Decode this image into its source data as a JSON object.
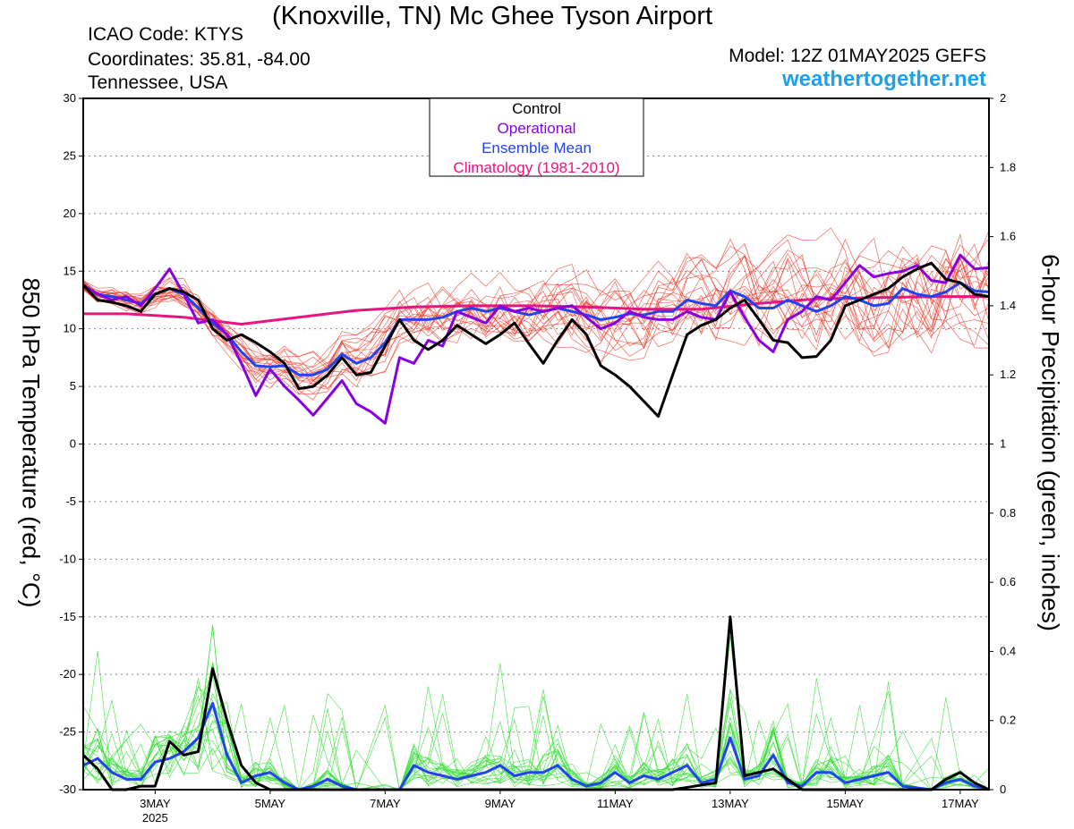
{
  "header": {
    "title": "(Knoxville, TN) Mc Ghee Tyson Airport",
    "icao": "ICAO Code: KTYS",
    "coordinates": "Coordinates: 35.81, -84.00",
    "region": "Tennessee, USA",
    "model": "Model: 12Z 01MAY2025 GEFS",
    "site": "weathertogether.net"
  },
  "chart_data": {
    "type": "line",
    "ylabel_left": "850 hPa Temperature (red, °C)",
    "ylabel_right": "6-hour Precipitation (green, inches)",
    "ylim_left": [
      -30,
      30
    ],
    "ylim_right": [
      0,
      2
    ],
    "yticks_left": [
      "30",
      "25",
      "20",
      "15",
      "10",
      "5",
      "0",
      "-5",
      "-10",
      "-15",
      "-20",
      "-25",
      "-30"
    ],
    "yticks_right": [
      "2",
      "1.8",
      "1.6",
      "1.4",
      "1.2",
      "1",
      "0.8",
      "0.6",
      "0.4",
      "0.2",
      "0"
    ],
    "xlim_days": [
      1.75,
      17.5
    ],
    "xticks": [
      {
        "day": 3,
        "label": "3MAY",
        "sublabel": "2025"
      },
      {
        "day": 5,
        "label": "5MAY"
      },
      {
        "day": 7,
        "label": "7MAY"
      },
      {
        "day": 9,
        "label": "9MAY"
      },
      {
        "day": 11,
        "label": "11MAY"
      },
      {
        "day": 13,
        "label": "13MAY"
      },
      {
        "day": 15,
        "label": "15MAY"
      },
      {
        "day": 17,
        "label": "17MAY"
      }
    ],
    "grid": "dotted horizontal",
    "legend_position": "top-center",
    "legend": [
      {
        "label": "Control",
        "color": "#000000"
      },
      {
        "label": "Operational",
        "color": "#8800dd"
      },
      {
        "label": "Ensemble Mean",
        "color": "#2244ee"
      },
      {
        "label": "Climatology (1981-2010)",
        "color": "#e8147f"
      }
    ],
    "colors": {
      "members_temp": "#ee3322",
      "members_precip": "#33dd33"
    },
    "temperature": {
      "control": [
        [
          1.75,
          13.8
        ],
        [
          2,
          12.5
        ],
        [
          2.25,
          12.3
        ],
        [
          2.5,
          12.0
        ],
        [
          2.75,
          11.5
        ],
        [
          3,
          13.0
        ],
        [
          3.25,
          13.5
        ],
        [
          3.5,
          13.2
        ],
        [
          3.75,
          12.5
        ],
        [
          4,
          10.0
        ],
        [
          4.25,
          9.0
        ],
        [
          4.5,
          9.5
        ],
        [
          4.75,
          8.8
        ],
        [
          5,
          8.0
        ],
        [
          5.25,
          7.0
        ],
        [
          5.5,
          4.8
        ],
        [
          5.75,
          5.0
        ],
        [
          6,
          6.0
        ],
        [
          6.25,
          7.5
        ],
        [
          6.5,
          6.0
        ],
        [
          6.75,
          6.2
        ],
        [
          7,
          8.5
        ],
        [
          7.25,
          10.8
        ],
        [
          7.5,
          9.0
        ],
        [
          7.75,
          8.2
        ],
        [
          8,
          9.0
        ],
        [
          8.25,
          10.3
        ],
        [
          8.5,
          9.5
        ],
        [
          8.75,
          8.7
        ],
        [
          9,
          9.5
        ],
        [
          9.25,
          10.5
        ],
        [
          9.5,
          8.7
        ],
        [
          9.75,
          7.0
        ],
        [
          10,
          9.0
        ],
        [
          10.25,
          10.8
        ],
        [
          10.5,
          9.5
        ],
        [
          10.75,
          6.8
        ],
        [
          11,
          6.0
        ],
        [
          11.25,
          5.0
        ],
        [
          11.5,
          3.7
        ],
        [
          11.75,
          2.4
        ],
        [
          12,
          6.0
        ],
        [
          12.25,
          9.5
        ],
        [
          12.5,
          10.3
        ],
        [
          12.75,
          10.8
        ],
        [
          13,
          11.8
        ],
        [
          13.25,
          12.5
        ],
        [
          13.5,
          10.8
        ],
        [
          13.75,
          9.0
        ],
        [
          14,
          8.8
        ],
        [
          14.25,
          7.5
        ],
        [
          14.5,
          7.6
        ],
        [
          14.75,
          9.0
        ],
        [
          15,
          12.0
        ],
        [
          15.25,
          12.5
        ],
        [
          15.5,
          13.0
        ],
        [
          15.75,
          13.5
        ],
        [
          16,
          14.5
        ],
        [
          16.25,
          15.2
        ],
        [
          16.5,
          15.7
        ],
        [
          16.75,
          14.3
        ],
        [
          17,
          14.0
        ],
        [
          17.25,
          13.0
        ],
        [
          17.5,
          12.8
        ]
      ],
      "operational": [
        [
          1.75,
          13.8
        ],
        [
          2,
          13.0
        ],
        [
          2.25,
          12.5
        ],
        [
          2.5,
          12.8
        ],
        [
          2.75,
          12.0
        ],
        [
          3,
          13.5
        ],
        [
          3.25,
          15.2
        ],
        [
          3.5,
          13.0
        ],
        [
          3.75,
          10.5
        ],
        [
          4,
          10.8
        ],
        [
          4.25,
          9.5
        ],
        [
          4.5,
          7.0
        ],
        [
          4.75,
          4.2
        ],
        [
          5,
          6.5
        ],
        [
          5.25,
          5.0
        ],
        [
          5.5,
          3.8
        ],
        [
          5.75,
          2.5
        ],
        [
          6,
          4.0
        ],
        [
          6.25,
          5.5
        ],
        [
          6.5,
          3.5
        ],
        [
          6.75,
          2.8
        ],
        [
          7,
          1.8
        ],
        [
          7.25,
          7.5
        ],
        [
          7.5,
          7.0
        ],
        [
          7.75,
          9.0
        ],
        [
          8,
          8.5
        ],
        [
          8.25,
          11.5
        ],
        [
          8.5,
          11.0
        ],
        [
          8.75,
          10.5
        ],
        [
          9,
          12.0
        ],
        [
          9.25,
          11.5
        ],
        [
          9.5,
          11.8
        ],
        [
          9.75,
          11.5
        ],
        [
          10,
          11.8
        ],
        [
          10.25,
          12.0
        ],
        [
          10.5,
          11.0
        ],
        [
          10.75,
          10.0
        ],
        [
          11,
          10.5
        ],
        [
          11.25,
          11.5
        ],
        [
          11.5,
          11.0
        ],
        [
          11.75,
          10.8
        ],
        [
          12,
          10.8
        ],
        [
          12.25,
          11.5
        ],
        [
          12.5,
          11.0
        ],
        [
          12.75,
          10.8
        ],
        [
          13,
          13.2
        ],
        [
          13.25,
          11.0
        ],
        [
          13.5,
          9.0
        ],
        [
          13.75,
          8.0
        ],
        [
          14,
          10.8
        ],
        [
          14.25,
          11.5
        ],
        [
          14.5,
          12.8
        ],
        [
          14.75,
          12.5
        ],
        [
          15,
          14.0
        ],
        [
          15.25,
          15.5
        ],
        [
          15.5,
          14.5
        ],
        [
          15.75,
          14.8
        ],
        [
          16,
          15.0
        ],
        [
          16.25,
          15.5
        ],
        [
          16.5,
          14.2
        ],
        [
          16.75,
          14.0
        ],
        [
          17,
          16.4
        ],
        [
          17.25,
          15.2
        ],
        [
          17.5,
          15.3
        ]
      ],
      "ensemble_mean": [
        [
          1.75,
          13.8
        ],
        [
          2,
          13.0
        ],
        [
          2.25,
          12.8
        ],
        [
          2.5,
          12.5
        ],
        [
          2.75,
          12.2
        ],
        [
          3,
          13.0
        ],
        [
          3.25,
          13.5
        ],
        [
          3.5,
          13.0
        ],
        [
          3.75,
          11.8
        ],
        [
          4,
          10.5
        ],
        [
          4.25,
          9.5
        ],
        [
          4.5,
          8.0
        ],
        [
          4.75,
          6.8
        ],
        [
          5,
          6.7
        ],
        [
          5.25,
          6.8
        ],
        [
          5.5,
          6.0
        ],
        [
          5.75,
          6.0
        ],
        [
          6,
          6.5
        ],
        [
          6.25,
          7.8
        ],
        [
          6.5,
          7.0
        ],
        [
          6.75,
          7.5
        ],
        [
          7,
          8.8
        ],
        [
          7.25,
          10.8
        ],
        [
          7.5,
          10.8
        ],
        [
          7.75,
          10.8
        ],
        [
          8,
          11.0
        ],
        [
          8.25,
          11.5
        ],
        [
          8.5,
          11.8
        ],
        [
          8.75,
          11.5
        ],
        [
          9,
          11.8
        ],
        [
          9.25,
          11.5
        ],
        [
          9.5,
          11.2
        ],
        [
          9.75,
          11.5
        ],
        [
          10,
          11.8
        ],
        [
          10.25,
          11.5
        ],
        [
          10.5,
          11.2
        ],
        [
          10.75,
          10.8
        ],
        [
          11,
          11.0
        ],
        [
          11.25,
          11.3
        ],
        [
          11.5,
          11.2
        ],
        [
          11.75,
          11.5
        ],
        [
          12,
          11.5
        ],
        [
          12.25,
          12.5
        ],
        [
          12.5,
          12.2
        ],
        [
          12.75,
          12.0
        ],
        [
          13,
          13.3
        ],
        [
          13.25,
          12.8
        ],
        [
          13.5,
          11.8
        ],
        [
          13.75,
          11.8
        ],
        [
          14,
          12.5
        ],
        [
          14.25,
          12.0
        ],
        [
          14.5,
          11.5
        ],
        [
          14.75,
          12.0
        ],
        [
          15,
          12.8
        ],
        [
          15.25,
          12.5
        ],
        [
          15.5,
          12.0
        ],
        [
          15.75,
          12.2
        ],
        [
          16,
          13.5
        ],
        [
          16.25,
          13.0
        ],
        [
          16.5,
          12.8
        ],
        [
          16.75,
          13.2
        ],
        [
          17,
          14.0
        ],
        [
          17.25,
          13.3
        ],
        [
          17.5,
          13.2
        ]
      ],
      "climatology": [
        [
          1.75,
          11.3
        ],
        [
          2.5,
          11.3
        ],
        [
          3.5,
          11.0
        ],
        [
          4.5,
          10.4
        ],
        [
          5.5,
          11.0
        ],
        [
          6.5,
          11.6
        ],
        [
          7.5,
          11.9
        ],
        [
          8.5,
          12.0
        ],
        [
          9.5,
          12.0
        ],
        [
          10.5,
          11.9
        ],
        [
          11.5,
          11.7
        ],
        [
          12.5,
          11.7
        ],
        [
          13.5,
          12.2
        ],
        [
          14.5,
          12.6
        ],
        [
          15.5,
          12.7
        ],
        [
          16.5,
          12.8
        ],
        [
          17.5,
          12.8
        ]
      ]
    },
    "precipitation": {
      "control": [
        [
          1.75,
          0.1
        ],
        [
          2,
          0.06
        ],
        [
          2.25,
          0.0
        ],
        [
          2.5,
          0.0
        ],
        [
          2.75,
          0.01
        ],
        [
          3,
          0.01
        ],
        [
          3.25,
          0.14
        ],
        [
          3.5,
          0.1
        ],
        [
          3.75,
          0.11
        ],
        [
          4,
          0.35
        ],
        [
          4.25,
          0.2
        ],
        [
          4.5,
          0.07
        ],
        [
          4.75,
          0.02
        ],
        [
          5,
          0.0
        ],
        [
          5.5,
          0.0
        ],
        [
          6,
          0.0
        ],
        [
          7,
          0.0
        ],
        [
          7.5,
          0.0
        ],
        [
          8,
          0.0
        ],
        [
          9,
          0.0
        ],
        [
          10,
          0.0
        ],
        [
          11,
          0.0
        ],
        [
          12,
          0.0
        ],
        [
          12.75,
          0.02
        ],
        [
          13,
          0.5
        ],
        [
          13.25,
          0.04
        ],
        [
          13.5,
          0.05
        ],
        [
          13.75,
          0.06
        ],
        [
          14,
          0.03
        ],
        [
          14.25,
          0.0
        ],
        [
          15,
          0.0
        ],
        [
          16,
          0.0
        ],
        [
          16.5,
          0.0
        ],
        [
          16.75,
          0.03
        ],
        [
          17,
          0.05
        ],
        [
          17.25,
          0.02
        ],
        [
          17.5,
          0.0
        ]
      ],
      "ensemble_mean": [
        [
          1.75,
          0.07
        ],
        [
          2,
          0.09
        ],
        [
          2.25,
          0.05
        ],
        [
          2.5,
          0.03
        ],
        [
          2.75,
          0.03
        ],
        [
          3,
          0.08
        ],
        [
          3.25,
          0.09
        ],
        [
          3.5,
          0.11
        ],
        [
          3.75,
          0.15
        ],
        [
          4,
          0.25
        ],
        [
          4.25,
          0.1
        ],
        [
          4.5,
          0.02
        ],
        [
          4.75,
          0.04
        ],
        [
          5,
          0.05
        ],
        [
          5.25,
          0.02
        ],
        [
          5.5,
          0.0
        ],
        [
          5.75,
          0.01
        ],
        [
          6,
          0.03
        ],
        [
          6.25,
          0.01
        ],
        [
          6.5,
          0.0
        ],
        [
          7,
          0.0
        ],
        [
          7.25,
          0.0
        ],
        [
          7.5,
          0.07
        ],
        [
          7.75,
          0.05
        ],
        [
          8,
          0.04
        ],
        [
          8.25,
          0.03
        ],
        [
          8.5,
          0.04
        ],
        [
          8.75,
          0.05
        ],
        [
          9,
          0.07
        ],
        [
          9.25,
          0.04
        ],
        [
          9.5,
          0.05
        ],
        [
          9.75,
          0.05
        ],
        [
          10,
          0.07
        ],
        [
          10.25,
          0.03
        ],
        [
          10.5,
          0.01
        ],
        [
          10.75,
          0.02
        ],
        [
          11,
          0.05
        ],
        [
          11.25,
          0.02
        ],
        [
          11.5,
          0.04
        ],
        [
          11.75,
          0.03
        ],
        [
          12,
          0.05
        ],
        [
          12.25,
          0.07
        ],
        [
          12.5,
          0.02
        ],
        [
          12.75,
          0.03
        ],
        [
          13,
          0.15
        ],
        [
          13.25,
          0.03
        ],
        [
          13.5,
          0.04
        ],
        [
          13.75,
          0.1
        ],
        [
          14,
          0.02
        ],
        [
          14.25,
          0.01
        ],
        [
          14.5,
          0.05
        ],
        [
          14.75,
          0.05
        ],
        [
          15,
          0.02
        ],
        [
          15.25,
          0.03
        ],
        [
          15.5,
          0.04
        ],
        [
          15.75,
          0.05
        ],
        [
          16,
          0.01
        ],
        [
          16.5,
          0.0
        ],
        [
          16.75,
          0.02
        ],
        [
          17,
          0.03
        ],
        [
          17.25,
          0.01
        ],
        [
          17.5,
          0.0
        ]
      ]
    }
  }
}
